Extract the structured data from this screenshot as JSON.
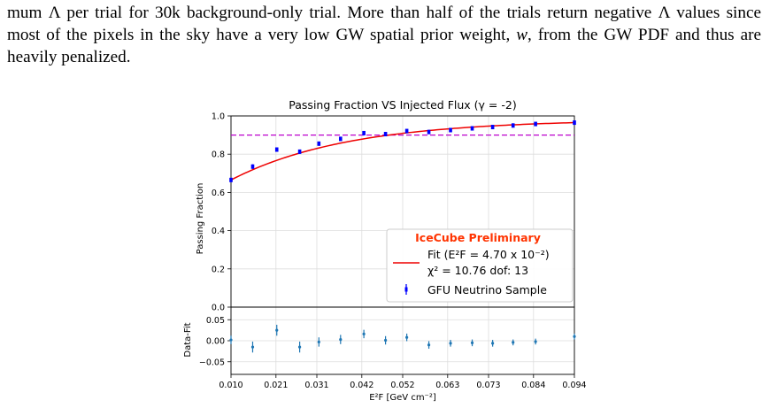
{
  "body_text": {
    "line1": "mum Λ per trial for 30k background-only trial. More than half of the trials return negative Λ values since",
    "line2_a": "most of the pixels in the sky have a very low GW spatial prior weight, ",
    "line2_w": "w",
    "line2_b": ", from the GW PDF and thus are",
    "line3": "heavily penalized."
  },
  "chart_data": [
    {
      "type": "scatter",
      "title": "Passing Fraction VS Injected Flux (γ = -2)",
      "xlabel": "",
      "ylabel": "Passing Fraction",
      "xlim": [
        0.01,
        0.094
      ],
      "ylim": [
        0.0,
        1.0
      ],
      "yticks": [
        "0.0",
        "0.2",
        "0.4",
        "0.6",
        "0.8",
        "1.0"
      ],
      "grid": true,
      "legend": {
        "placement": "lower-right",
        "header": "IceCube Preliminary",
        "header_color": "#ff3300",
        "fit_label_line1": "Fit (E²F = 4.70 x 10⁻²)",
        "fit_label_line2": "χ² = 10.76  dof: 13",
        "points_label": "GFU Neutrino Sample"
      },
      "threshold": {
        "y": 0.9,
        "color": "#bb00cc",
        "style": "dashed"
      },
      "fit_curve": {
        "color": "#ee0000",
        "model": "1 - exp(-k*x)",
        "k_per_unit": 35.0
      },
      "series": [
        {
          "color": "#0000ff",
          "x": [
            0.01,
            0.0153,
            0.0212,
            0.0268,
            0.0315,
            0.0368,
            0.0425,
            0.0478,
            0.053,
            0.0584,
            0.0637,
            0.069,
            0.074,
            0.079,
            0.0845,
            0.094
          ],
          "y": [
            0.665,
            0.735,
            0.824,
            0.813,
            0.855,
            0.88,
            0.91,
            0.905,
            0.921,
            0.916,
            0.926,
            0.935,
            0.942,
            0.95,
            0.958,
            0.965
          ],
          "yerr": [
            0.012,
            0.012,
            0.011,
            0.011,
            0.01,
            0.01,
            0.009,
            0.009,
            0.009,
            0.009,
            0.008,
            0.008,
            0.008,
            0.007,
            0.007,
            0.007
          ]
        }
      ]
    },
    {
      "type": "scatter",
      "title": "",
      "xlabel": "E²F  [GeV cm⁻²]",
      "ylabel": "Data-Fit",
      "xlim": [
        0.01,
        0.094
      ],
      "ylim": [
        -0.08,
        0.08
      ],
      "xticks": [
        "0.010",
        "0.021",
        "0.031",
        "0.042",
        "0.052",
        "0.063",
        "0.073",
        "0.084",
        "0.094"
      ],
      "yticks": [
        "0.05",
        "0.00",
        "−0.05"
      ],
      "grid": true,
      "series": [
        {
          "color": "#1f77b4",
          "x": [
            0.01,
            0.0153,
            0.0212,
            0.0268,
            0.0315,
            0.0368,
            0.0425,
            0.0478,
            0.053,
            0.0584,
            0.0637,
            0.069,
            0.074,
            0.079,
            0.0845,
            0.094
          ],
          "y": [
            0.002,
            -0.015,
            0.025,
            -0.015,
            -0.003,
            0.003,
            0.016,
            0.001,
            0.008,
            -0.01,
            -0.006,
            -0.005,
            -0.006,
            -0.004,
            -0.002,
            0.01
          ],
          "yerr": [
            0.01,
            0.013,
            0.013,
            0.013,
            0.011,
            0.011,
            0.01,
            0.01,
            0.009,
            0.009,
            0.008,
            0.008,
            0.008,
            0.007,
            0.007,
            0.007
          ]
        }
      ]
    }
  ]
}
